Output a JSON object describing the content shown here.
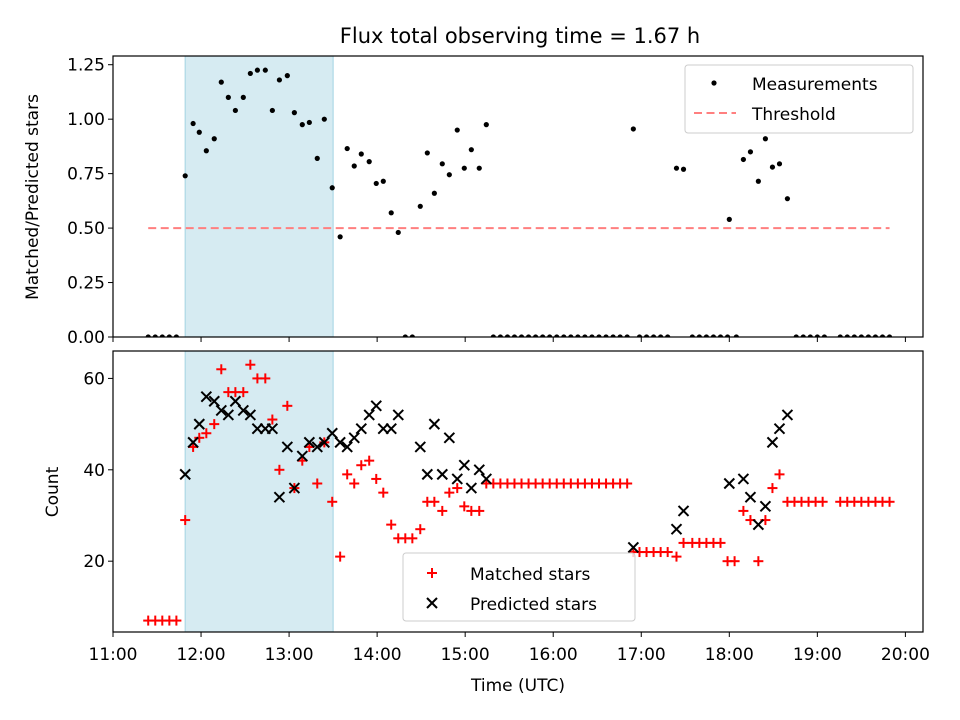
{
  "figure": {
    "title": "Flux total observing time = 1.67 h"
  },
  "colors": {
    "measurement": "#000000",
    "threshold": "#ff7f7f",
    "shade": "#add8e6",
    "matched": "#ff0000",
    "predicted": "#000000"
  },
  "chart_data": [
    {
      "type": "scatter",
      "ylabel": "Matched/Predicted stars",
      "xlabel": "",
      "x_unit": "hours UTC",
      "xlim": [
        11.0,
        20.2
      ],
      "ylim": [
        0.0,
        1.29
      ],
      "yticks": [
        0.0,
        0.25,
        0.5,
        0.75,
        1.0,
        1.25
      ],
      "ytick_labels": [
        "0.00",
        "0.25",
        "0.50",
        "0.75",
        "1.00",
        "1.25"
      ],
      "shaded_interval": [
        11.82,
        13.5
      ],
      "legend": {
        "position": "top-right",
        "entries": [
          "Measurements",
          "Threshold"
        ]
      },
      "threshold": {
        "name": "Threshold",
        "y": 0.5,
        "x": [
          11.4,
          19.82
        ]
      },
      "series": [
        {
          "name": "Measurements",
          "points": [
            [
              11.4,
              0
            ],
            [
              11.48,
              0
            ],
            [
              11.56,
              0
            ],
            [
              11.64,
              0
            ],
            [
              11.72,
              0
            ],
            [
              11.82,
              0.74
            ],
            [
              11.91,
              0.98
            ],
            [
              11.98,
              0.94
            ],
            [
              12.06,
              0.855
            ],
            [
              12.15,
              0.91
            ],
            [
              12.23,
              1.17
            ],
            [
              12.31,
              1.1
            ],
            [
              12.39,
              1.04
            ],
            [
              12.48,
              1.1
            ],
            [
              12.56,
              1.21
            ],
            [
              12.64,
              1.225
            ],
            [
              12.73,
              1.225
            ],
            [
              12.81,
              1.04
            ],
            [
              12.89,
              1.18
            ],
            [
              12.98,
              1.2
            ],
            [
              13.06,
              1.03
            ],
            [
              13.15,
              0.975
            ],
            [
              13.23,
              0.985
            ],
            [
              13.32,
              0.82
            ],
            [
              13.4,
              1.0
            ],
            [
              13.49,
              0.685
            ],
            [
              13.58,
              0.46
            ],
            [
              13.66,
              0.865
            ],
            [
              13.74,
              0.785
            ],
            [
              13.82,
              0.84
            ],
            [
              13.91,
              0.805
            ],
            [
              13.99,
              0.705
            ],
            [
              14.07,
              0.715
            ],
            [
              14.16,
              0.57
            ],
            [
              14.24,
              0.48
            ],
            [
              14.32,
              0
            ],
            [
              14.4,
              0
            ],
            [
              14.49,
              0.6
            ],
            [
              14.57,
              0.845
            ],
            [
              14.65,
              0.66
            ],
            [
              14.74,
              0.795
            ],
            [
              14.82,
              0.745
            ],
            [
              14.91,
              0.95
            ],
            [
              14.99,
              0.775
            ],
            [
              15.07,
              0.86
            ],
            [
              15.16,
              0.775
            ],
            [
              15.24,
              0.975
            ],
            [
              15.32,
              0
            ],
            [
              15.4,
              0
            ],
            [
              15.48,
              0
            ],
            [
              15.56,
              0
            ],
            [
              15.64,
              0
            ],
            [
              15.72,
              0
            ],
            [
              15.8,
              0
            ],
            [
              15.88,
              0
            ],
            [
              15.96,
              0
            ],
            [
              16.04,
              0
            ],
            [
              16.12,
              0
            ],
            [
              16.2,
              0
            ],
            [
              16.28,
              0
            ],
            [
              16.36,
              0
            ],
            [
              16.44,
              0
            ],
            [
              16.52,
              0
            ],
            [
              16.6,
              0
            ],
            [
              16.68,
              0
            ],
            [
              16.76,
              0
            ],
            [
              16.84,
              0
            ],
            [
              16.91,
              0.955
            ],
            [
              16.98,
              0
            ],
            [
              17.06,
              0
            ],
            [
              17.14,
              0
            ],
            [
              17.22,
              0
            ],
            [
              17.3,
              0
            ],
            [
              17.4,
              0.775
            ],
            [
              17.48,
              0.77
            ],
            [
              17.58,
              0
            ],
            [
              17.66,
              0
            ],
            [
              17.74,
              0
            ],
            [
              17.82,
              0
            ],
            [
              17.9,
              0
            ],
            [
              17.98,
              0
            ],
            [
              18.0,
              0.54
            ],
            [
              18.08,
              0
            ],
            [
              18.16,
              0.815
            ],
            [
              18.24,
              0.85
            ],
            [
              18.33,
              0.715
            ],
            [
              18.41,
              0.91
            ],
            [
              18.49,
              0.78
            ],
            [
              18.57,
              0.795
            ],
            [
              18.66,
              0.635
            ],
            [
              18.76,
              0
            ],
            [
              18.84,
              0
            ],
            [
              18.92,
              0
            ],
            [
              19.0,
              0
            ],
            [
              19.08,
              0
            ],
            [
              19.26,
              0
            ],
            [
              19.34,
              0
            ],
            [
              19.42,
              0
            ],
            [
              19.5,
              0
            ],
            [
              19.58,
              0
            ],
            [
              19.66,
              0
            ],
            [
              19.74,
              0
            ],
            [
              19.82,
              0
            ]
          ]
        }
      ]
    },
    {
      "type": "scatter",
      "ylabel": "Count",
      "xlabel": "Time (UTC)",
      "x_unit": "hours UTC",
      "xlim": [
        11.0,
        20.2
      ],
      "ylim": [
        4.5,
        66.0
      ],
      "yticks": [
        20,
        40,
        60
      ],
      "ytick_labels": [
        "20",
        "40",
        "60"
      ],
      "xticks": [
        11,
        12,
        13,
        14,
        15,
        16,
        17,
        18,
        19,
        20
      ],
      "xtick_labels": [
        "11:00",
        "12:00",
        "13:00",
        "14:00",
        "15:00",
        "16:00",
        "17:00",
        "18:00",
        "19:00",
        "20:00"
      ],
      "shaded_interval": [
        11.82,
        13.5
      ],
      "legend": {
        "position": "bottom-center",
        "entries": [
          "Matched stars",
          "Predicted stars"
        ]
      },
      "series": [
        {
          "name": "Matched stars",
          "marker": "plus",
          "points": [
            [
              11.4,
              7
            ],
            [
              11.48,
              7
            ],
            [
              11.56,
              7
            ],
            [
              11.64,
              7
            ],
            [
              11.72,
              7
            ],
            [
              11.82,
              29
            ],
            [
              11.91,
              45
            ],
            [
              11.98,
              47
            ],
            [
              12.06,
              48
            ],
            [
              12.15,
              50
            ],
            [
              12.23,
              62
            ],
            [
              12.31,
              57
            ],
            [
              12.39,
              57
            ],
            [
              12.48,
              57
            ],
            [
              12.56,
              63
            ],
            [
              12.64,
              60
            ],
            [
              12.73,
              60
            ],
            [
              12.81,
              51
            ],
            [
              12.89,
              40
            ],
            [
              12.98,
              54
            ],
            [
              13.06,
              36
            ],
            [
              13.15,
              42
            ],
            [
              13.23,
              45
            ],
            [
              13.32,
              37
            ],
            [
              13.4,
              46
            ],
            [
              13.49,
              33
            ],
            [
              13.58,
              21
            ],
            [
              13.66,
              39
            ],
            [
              13.74,
              37
            ],
            [
              13.82,
              41
            ],
            [
              13.91,
              42
            ],
            [
              13.99,
              38
            ],
            [
              14.07,
              35
            ],
            [
              14.16,
              28
            ],
            [
              14.24,
              25
            ],
            [
              14.32,
              25
            ],
            [
              14.4,
              25
            ],
            [
              14.49,
              27
            ],
            [
              14.57,
              33
            ],
            [
              14.65,
              33
            ],
            [
              14.74,
              31
            ],
            [
              14.82,
              35
            ],
            [
              14.91,
              36
            ],
            [
              14.99,
              32
            ],
            [
              15.07,
              31
            ],
            [
              15.16,
              31
            ],
            [
              15.24,
              37
            ],
            [
              15.32,
              37
            ],
            [
              15.4,
              37
            ],
            [
              15.48,
              37
            ],
            [
              15.56,
              37
            ],
            [
              15.64,
              37
            ],
            [
              15.72,
              37
            ],
            [
              15.8,
              37
            ],
            [
              15.88,
              37
            ],
            [
              15.96,
              37
            ],
            [
              16.04,
              37
            ],
            [
              16.12,
              37
            ],
            [
              16.2,
              37
            ],
            [
              16.28,
              37
            ],
            [
              16.36,
              37
            ],
            [
              16.44,
              37
            ],
            [
              16.52,
              37
            ],
            [
              16.6,
              37
            ],
            [
              16.68,
              37
            ],
            [
              16.76,
              37
            ],
            [
              16.84,
              37
            ],
            [
              16.91,
              22
            ],
            [
              16.98,
              22
            ],
            [
              17.06,
              22
            ],
            [
              17.14,
              22
            ],
            [
              17.22,
              22
            ],
            [
              17.3,
              22
            ],
            [
              17.4,
              21
            ],
            [
              17.48,
              24
            ],
            [
              17.58,
              24
            ],
            [
              17.66,
              24
            ],
            [
              17.74,
              24
            ],
            [
              17.82,
              24
            ],
            [
              17.9,
              24
            ],
            [
              17.98,
              20
            ],
            [
              18.06,
              20
            ],
            [
              18.16,
              31
            ],
            [
              18.24,
              29
            ],
            [
              18.33,
              20
            ],
            [
              18.41,
              29
            ],
            [
              18.49,
              36
            ],
            [
              18.57,
              39
            ],
            [
              18.66,
              33
            ],
            [
              18.74,
              33
            ],
            [
              18.82,
              33
            ],
            [
              18.9,
              33
            ],
            [
              18.98,
              33
            ],
            [
              19.06,
              33
            ],
            [
              19.26,
              33
            ],
            [
              19.34,
              33
            ],
            [
              19.42,
              33
            ],
            [
              19.5,
              33
            ],
            [
              19.58,
              33
            ],
            [
              19.66,
              33
            ],
            [
              19.74,
              33
            ],
            [
              19.82,
              33
            ]
          ]
        },
        {
          "name": "Predicted stars",
          "marker": "x",
          "points": [
            [
              11.82,
              39
            ],
            [
              11.91,
              46
            ],
            [
              11.98,
              50
            ],
            [
              12.06,
              56
            ],
            [
              12.15,
              55
            ],
            [
              12.23,
              53
            ],
            [
              12.31,
              52
            ],
            [
              12.39,
              55
            ],
            [
              12.48,
              53
            ],
            [
              12.56,
              52
            ],
            [
              12.64,
              49
            ],
            [
              12.73,
              49
            ],
            [
              12.81,
              49
            ],
            [
              12.89,
              34
            ],
            [
              12.98,
              45
            ],
            [
              13.06,
              36
            ],
            [
              13.15,
              43
            ],
            [
              13.23,
              46
            ],
            [
              13.32,
              45
            ],
            [
              13.4,
              46
            ],
            [
              13.49,
              48
            ],
            [
              13.58,
              46
            ],
            [
              13.66,
              45
            ],
            [
              13.74,
              47
            ],
            [
              13.82,
              49
            ],
            [
              13.91,
              52
            ],
            [
              13.99,
              54
            ],
            [
              14.07,
              49
            ],
            [
              14.16,
              49
            ],
            [
              14.24,
              52
            ],
            [
              14.49,
              45
            ],
            [
              14.57,
              39
            ],
            [
              14.65,
              50
            ],
            [
              14.74,
              39
            ],
            [
              14.82,
              47
            ],
            [
              14.91,
              38
            ],
            [
              14.99,
              41
            ],
            [
              15.07,
              36
            ],
            [
              15.16,
              40
            ],
            [
              15.24,
              38
            ],
            [
              16.91,
              23
            ],
            [
              17.4,
              27
            ],
            [
              17.48,
              31
            ],
            [
              18.0,
              37
            ],
            [
              18.16,
              38
            ],
            [
              18.24,
              34
            ],
            [
              18.33,
              28
            ],
            [
              18.41,
              32
            ],
            [
              18.49,
              46
            ],
            [
              18.57,
              49
            ],
            [
              18.66,
              52
            ]
          ]
        }
      ]
    }
  ]
}
